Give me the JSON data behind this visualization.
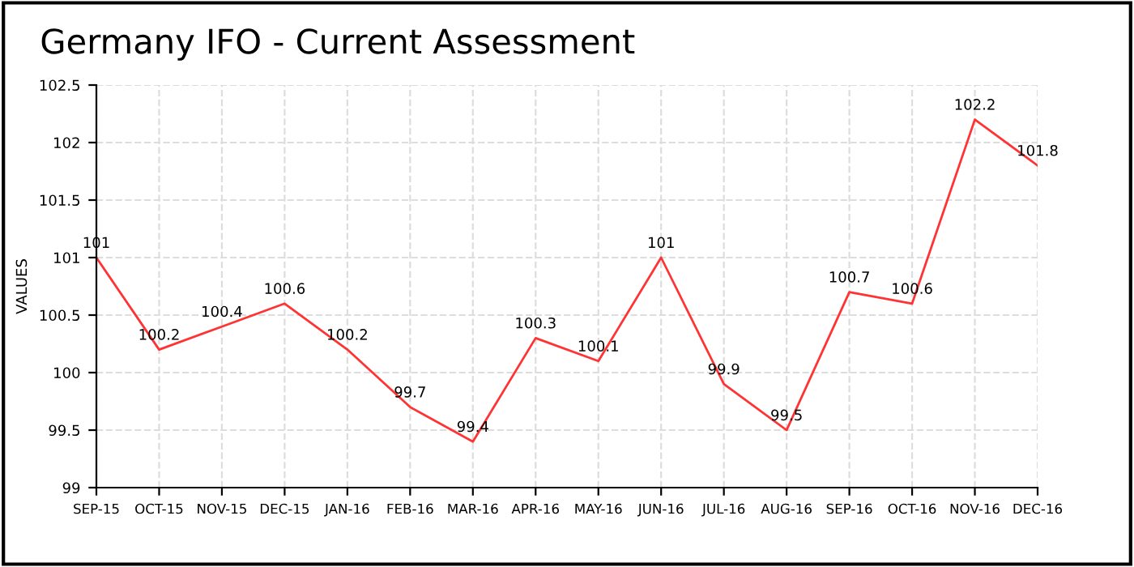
{
  "chart_data": {
    "type": "line",
    "title": "Germany IFO - Current Assessment",
    "ylabel": "VALUES",
    "categories": [
      "SEP-15",
      "OCT-15",
      "NOV-15",
      "DEC-15",
      "JAN-16",
      "FEB-16",
      "MAR-16",
      "APR-16",
      "MAY-16",
      "JUN-16",
      "JUL-16",
      "AUG-16",
      "SEP-16",
      "OCT-16",
      "NOV-16",
      "DEC-16"
    ],
    "series": [
      {
        "color": "#ff3333",
        "values": [
          101,
          100.2,
          100.4,
          100.6,
          100.2,
          99.7,
          99.4,
          100.3,
          100.1,
          101,
          99.9,
          99.5,
          100.7,
          100.6,
          102.2,
          101.8
        ]
      }
    ],
    "ylim": [
      99,
      102.5
    ],
    "yticks": [
      99,
      99.5,
      100,
      100.5,
      101,
      101.5,
      102,
      102.5
    ],
    "grid": true,
    "data_labels": true,
    "marker": "none",
    "line_style": "solid",
    "legend": false
  }
}
